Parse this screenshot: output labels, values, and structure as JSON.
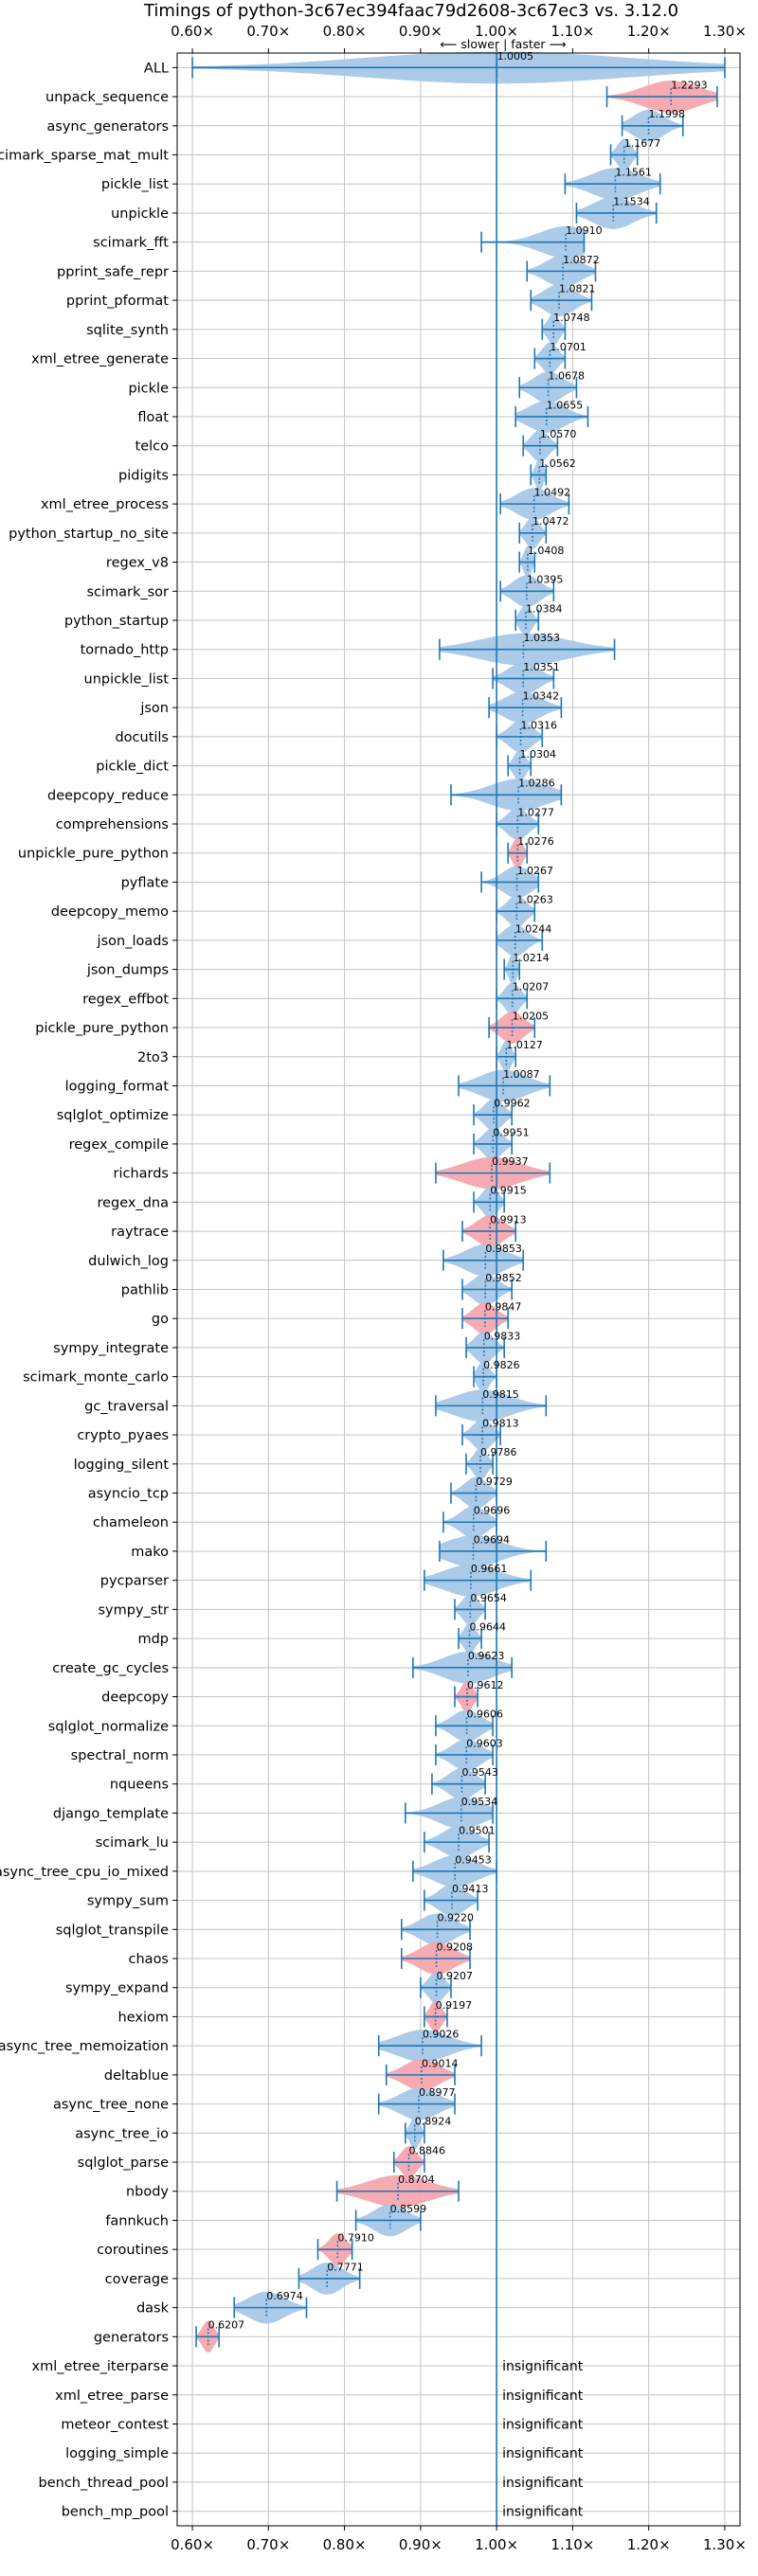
{
  "chart_data": {
    "type": "violin",
    "title": "Timings of python-3c67ec394faac79d2608-3c67ec3 vs. 3.12.0",
    "direction_label": "⟵ slower | faster ⟶",
    "xlim": [
      0.58,
      1.32
    ],
    "xticks": [
      0.6,
      0.7,
      0.8,
      0.9,
      1.0,
      1.1,
      1.2,
      1.3
    ],
    "xtick_labels": [
      "0.60×",
      "0.70×",
      "0.80×",
      "0.90×",
      "1.00×",
      "1.10×",
      "1.20×",
      "1.30×"
    ],
    "grid": true,
    "colors": {
      "faster": "#a6c8e8",
      "slower": "#f5a5ad",
      "whisker": "#1f77b4",
      "baseline": "#1f77b4",
      "grid": "#c4c4c4"
    },
    "benchmarks": [
      {
        "name": "ALL",
        "value": 1.0005,
        "lo": 0.6,
        "hi": 1.3,
        "slower": false
      },
      {
        "name": "unpack_sequence",
        "value": 1.2293,
        "lo": 1.145,
        "hi": 1.29,
        "slower": true
      },
      {
        "name": "async_generators",
        "value": 1.1998,
        "lo": 1.165,
        "hi": 1.245,
        "slower": false
      },
      {
        "name": "scimark_sparse_mat_mult",
        "value": 1.1677,
        "lo": 1.15,
        "hi": 1.185,
        "slower": false
      },
      {
        "name": "pickle_list",
        "value": 1.1561,
        "lo": 1.09,
        "hi": 1.215,
        "slower": false
      },
      {
        "name": "unpickle",
        "value": 1.1534,
        "lo": 1.105,
        "hi": 1.21,
        "slower": false
      },
      {
        "name": "scimark_fft",
        "value": 1.091,
        "lo": 0.98,
        "hi": 1.115,
        "slower": false
      },
      {
        "name": "pprint_safe_repr",
        "value": 1.0872,
        "lo": 1.04,
        "hi": 1.13,
        "slower": false
      },
      {
        "name": "pprint_pformat",
        "value": 1.0821,
        "lo": 1.045,
        "hi": 1.125,
        "slower": false
      },
      {
        "name": "sqlite_synth",
        "value": 1.0748,
        "lo": 1.06,
        "hi": 1.09,
        "slower": false
      },
      {
        "name": "xml_etree_generate",
        "value": 1.0701,
        "lo": 1.05,
        "hi": 1.09,
        "slower": false
      },
      {
        "name": "pickle",
        "value": 1.0678,
        "lo": 1.03,
        "hi": 1.105,
        "slower": false
      },
      {
        "name": "float",
        "value": 1.0655,
        "lo": 1.025,
        "hi": 1.12,
        "slower": false
      },
      {
        "name": "telco",
        "value": 1.057,
        "lo": 1.035,
        "hi": 1.08,
        "slower": false
      },
      {
        "name": "pidigits",
        "value": 1.0562,
        "lo": 1.045,
        "hi": 1.065,
        "slower": false
      },
      {
        "name": "xml_etree_process",
        "value": 1.0492,
        "lo": 1.005,
        "hi": 1.095,
        "slower": false
      },
      {
        "name": "python_startup_no_site",
        "value": 1.0472,
        "lo": 1.03,
        "hi": 1.065,
        "slower": false
      },
      {
        "name": "regex_v8",
        "value": 1.0408,
        "lo": 1.03,
        "hi": 1.05,
        "slower": false
      },
      {
        "name": "scimark_sor",
        "value": 1.0395,
        "lo": 1.005,
        "hi": 1.075,
        "slower": false
      },
      {
        "name": "python_startup",
        "value": 1.0384,
        "lo": 1.025,
        "hi": 1.055,
        "slower": false
      },
      {
        "name": "tornado_http",
        "value": 1.0353,
        "lo": 0.925,
        "hi": 1.155,
        "slower": false
      },
      {
        "name": "unpickle_list",
        "value": 1.0351,
        "lo": 0.995,
        "hi": 1.075,
        "slower": false
      },
      {
        "name": "json",
        "value": 1.0342,
        "lo": 0.99,
        "hi": 1.085,
        "slower": false
      },
      {
        "name": "docutils",
        "value": 1.0316,
        "lo": 1.0,
        "hi": 1.06,
        "slower": false
      },
      {
        "name": "pickle_dict",
        "value": 1.0304,
        "lo": 1.015,
        "hi": 1.045,
        "slower": false
      },
      {
        "name": "deepcopy_reduce",
        "value": 1.0286,
        "lo": 0.94,
        "hi": 1.085,
        "slower": false
      },
      {
        "name": "comprehensions",
        "value": 1.0277,
        "lo": 1.0,
        "hi": 1.055,
        "slower": false
      },
      {
        "name": "unpickle_pure_python",
        "value": 1.0276,
        "lo": 1.015,
        "hi": 1.04,
        "slower": true
      },
      {
        "name": "pyflate",
        "value": 1.0267,
        "lo": 0.98,
        "hi": 1.055,
        "slower": false
      },
      {
        "name": "deepcopy_memo",
        "value": 1.0263,
        "lo": 1.0,
        "hi": 1.05,
        "slower": false
      },
      {
        "name": "json_loads",
        "value": 1.0244,
        "lo": 1.0,
        "hi": 1.06,
        "slower": false
      },
      {
        "name": "json_dumps",
        "value": 1.0214,
        "lo": 1.01,
        "hi": 1.03,
        "slower": false
      },
      {
        "name": "regex_effbot",
        "value": 1.0207,
        "lo": 1.0,
        "hi": 1.04,
        "slower": false
      },
      {
        "name": "pickle_pure_python",
        "value": 1.0205,
        "lo": 0.99,
        "hi": 1.05,
        "slower": true
      },
      {
        "name": "2to3",
        "value": 1.0127,
        "lo": 1.0,
        "hi": 1.025,
        "slower": false
      },
      {
        "name": "logging_format",
        "value": 1.0087,
        "lo": 0.95,
        "hi": 1.07,
        "slower": false
      },
      {
        "name": "sqlglot_optimize",
        "value": 0.9962,
        "lo": 0.97,
        "hi": 1.02,
        "slower": false
      },
      {
        "name": "regex_compile",
        "value": 0.9951,
        "lo": 0.97,
        "hi": 1.02,
        "slower": false
      },
      {
        "name": "richards",
        "value": 0.9937,
        "lo": 0.92,
        "hi": 1.07,
        "slower": true
      },
      {
        "name": "regex_dna",
        "value": 0.9915,
        "lo": 0.97,
        "hi": 1.01,
        "slower": false
      },
      {
        "name": "raytrace",
        "value": 0.9913,
        "lo": 0.955,
        "hi": 1.025,
        "slower": true
      },
      {
        "name": "dulwich_log",
        "value": 0.9853,
        "lo": 0.93,
        "hi": 1.035,
        "slower": false
      },
      {
        "name": "pathlib",
        "value": 0.9852,
        "lo": 0.955,
        "hi": 1.02,
        "slower": false
      },
      {
        "name": "go",
        "value": 0.9847,
        "lo": 0.955,
        "hi": 1.015,
        "slower": true
      },
      {
        "name": "sympy_integrate",
        "value": 0.9833,
        "lo": 0.96,
        "hi": 1.01,
        "slower": false
      },
      {
        "name": "scimark_monte_carlo",
        "value": 0.9826,
        "lo": 0.97,
        "hi": 1.0,
        "slower": false
      },
      {
        "name": "gc_traversal",
        "value": 0.9815,
        "lo": 0.92,
        "hi": 1.065,
        "slower": false
      },
      {
        "name": "crypto_pyaes",
        "value": 0.9813,
        "lo": 0.955,
        "hi": 1.005,
        "slower": false
      },
      {
        "name": "logging_silent",
        "value": 0.9786,
        "lo": 0.96,
        "hi": 0.995,
        "slower": false
      },
      {
        "name": "asyncio_tcp",
        "value": 0.9729,
        "lo": 0.94,
        "hi": 1.0,
        "slower": false
      },
      {
        "name": "chameleon",
        "value": 0.9696,
        "lo": 0.93,
        "hi": 1.0,
        "slower": false
      },
      {
        "name": "mako",
        "value": 0.9694,
        "lo": 0.925,
        "hi": 1.065,
        "slower": false
      },
      {
        "name": "pycparser",
        "value": 0.9661,
        "lo": 0.905,
        "hi": 1.045,
        "slower": false
      },
      {
        "name": "sympy_str",
        "value": 0.9654,
        "lo": 0.945,
        "hi": 0.985,
        "slower": false
      },
      {
        "name": "mdp",
        "value": 0.9644,
        "lo": 0.95,
        "hi": 0.98,
        "slower": false
      },
      {
        "name": "create_gc_cycles",
        "value": 0.9623,
        "lo": 0.89,
        "hi": 1.02,
        "slower": false
      },
      {
        "name": "deepcopy",
        "value": 0.9612,
        "lo": 0.945,
        "hi": 0.975,
        "slower": true
      },
      {
        "name": "sqlglot_normalize",
        "value": 0.9606,
        "lo": 0.92,
        "hi": 0.995,
        "slower": false
      },
      {
        "name": "spectral_norm",
        "value": 0.9603,
        "lo": 0.92,
        "hi": 0.995,
        "slower": false
      },
      {
        "name": "nqueens",
        "value": 0.9543,
        "lo": 0.915,
        "hi": 0.985,
        "slower": false
      },
      {
        "name": "django_template",
        "value": 0.9534,
        "lo": 0.88,
        "hi": 0.995,
        "slower": false
      },
      {
        "name": "scimark_lu",
        "value": 0.9501,
        "lo": 0.905,
        "hi": 0.99,
        "slower": false
      },
      {
        "name": "async_tree_cpu_io_mixed",
        "value": 0.9453,
        "lo": 0.89,
        "hi": 1.0,
        "slower": false
      },
      {
        "name": "sympy_sum",
        "value": 0.9413,
        "lo": 0.905,
        "hi": 0.975,
        "slower": false
      },
      {
        "name": "sqlglot_transpile",
        "value": 0.922,
        "lo": 0.875,
        "hi": 0.965,
        "slower": false
      },
      {
        "name": "chaos",
        "value": 0.9208,
        "lo": 0.875,
        "hi": 0.965,
        "slower": true
      },
      {
        "name": "sympy_expand",
        "value": 0.9207,
        "lo": 0.9,
        "hi": 0.94,
        "slower": false
      },
      {
        "name": "hexiom",
        "value": 0.9197,
        "lo": 0.905,
        "hi": 0.935,
        "slower": true
      },
      {
        "name": "async_tree_memoization",
        "value": 0.9026,
        "lo": 0.845,
        "hi": 0.98,
        "slower": false
      },
      {
        "name": "deltablue",
        "value": 0.9014,
        "lo": 0.855,
        "hi": 0.945,
        "slower": true
      },
      {
        "name": "async_tree_none",
        "value": 0.8977,
        "lo": 0.845,
        "hi": 0.945,
        "slower": false
      },
      {
        "name": "async_tree_io",
        "value": 0.8924,
        "lo": 0.88,
        "hi": 0.905,
        "slower": false
      },
      {
        "name": "sqlglot_parse",
        "value": 0.8846,
        "lo": 0.865,
        "hi": 0.905,
        "slower": true
      },
      {
        "name": "nbody",
        "value": 0.8704,
        "lo": 0.79,
        "hi": 0.95,
        "slower": true
      },
      {
        "name": "fannkuch",
        "value": 0.8599,
        "lo": 0.815,
        "hi": 0.9,
        "slower": false
      },
      {
        "name": "coroutines",
        "value": 0.791,
        "lo": 0.765,
        "hi": 0.81,
        "slower": true
      },
      {
        "name": "coverage",
        "value": 0.7771,
        "lo": 0.74,
        "hi": 0.82,
        "slower": false
      },
      {
        "name": "dask",
        "value": 0.6974,
        "lo": 0.655,
        "hi": 0.75,
        "slower": false
      },
      {
        "name": "generators",
        "value": 0.6207,
        "lo": 0.605,
        "hi": 0.635,
        "slower": true
      },
      {
        "name": "xml_etree_iterparse",
        "insignificant": true
      },
      {
        "name": "xml_etree_parse",
        "insignificant": true
      },
      {
        "name": "meteor_contest",
        "insignificant": true
      },
      {
        "name": "logging_simple",
        "insignificant": true
      },
      {
        "name": "bench_thread_pool",
        "insignificant": true
      },
      {
        "name": "bench_mp_pool",
        "insignificant": true
      }
    ],
    "insignificant_label": "insignificant"
  }
}
